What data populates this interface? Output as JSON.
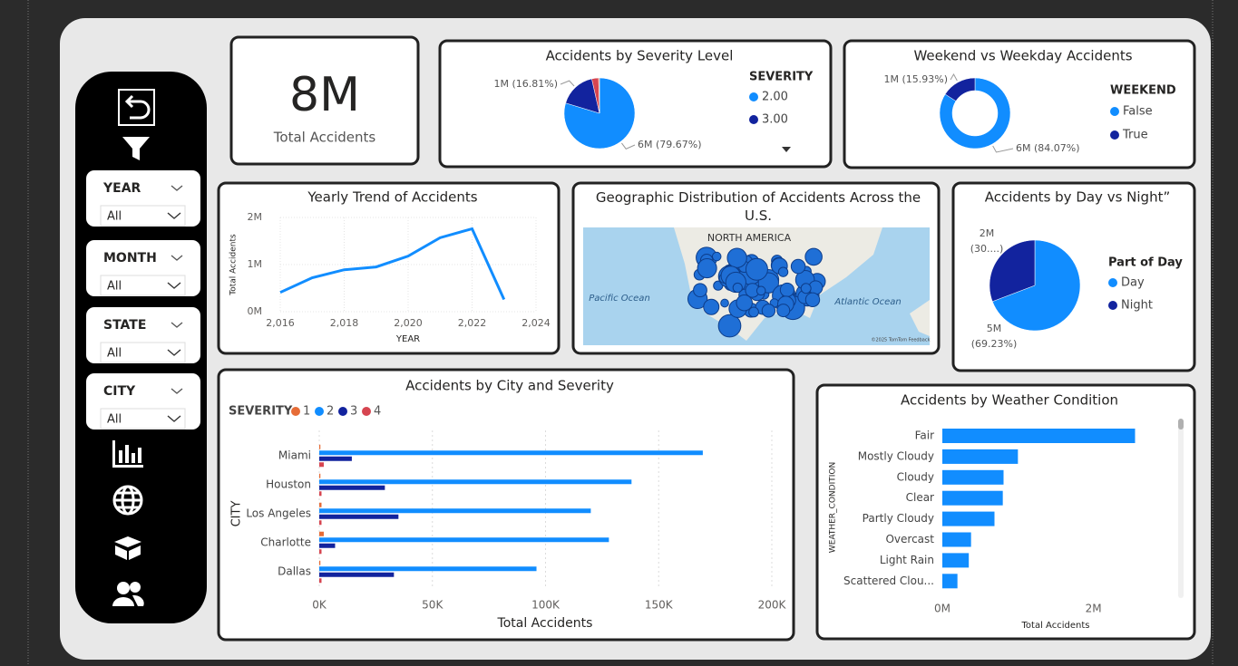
{
  "kpi": {
    "value": "8M",
    "label": "Total Accidents"
  },
  "filters": [
    {
      "label": "YEAR",
      "value": "All"
    },
    {
      "label": "MONTH",
      "value": "All"
    },
    {
      "label": "STATE",
      "value": "All"
    },
    {
      "label": "CITY",
      "value": "All"
    }
  ],
  "chart_data": [
    {
      "type": "pie",
      "title": "Accidents by Severity Level",
      "legend_title": "SEVERITY",
      "categories": [
        "2.00",
        "3.00",
        null,
        null
      ],
      "values": [
        79.67,
        16.81,
        3.12,
        0.4
      ],
      "value_labels": [
        "6M (79.67%)",
        "1M (16.81%)",
        null,
        null
      ],
      "colors": [
        "#118dff",
        "#12239e",
        "#d64550",
        "#e66c37"
      ]
    },
    {
      "type": "donut",
      "title": "Weekend vs Weekday Accidents",
      "legend_title": "WEEKEND",
      "categories": [
        "False",
        "True"
      ],
      "values": [
        84.07,
        15.93
      ],
      "value_labels": [
        "6M (84.07%)",
        "1M (15.93%)"
      ],
      "colors": [
        "#118dff",
        "#12239e"
      ]
    },
    {
      "type": "line",
      "title": "Yearly Trend of Accidents",
      "x_label": "YEAR",
      "y_label": "Total Accidents",
      "x": [
        2016,
        2017,
        2018,
        2019,
        2020,
        2021,
        2022,
        2023
      ],
      "values": [
        410000,
        720000,
        890000,
        950000,
        1180000,
        1570000,
        1760000,
        260000
      ],
      "color": "#118dff",
      "xlim": [
        2016,
        2024
      ],
      "xticks": [
        {
          "value": 2016,
          "label": "2,016"
        },
        {
          "value": 2018,
          "label": "2,018"
        },
        {
          "value": 2020,
          "label": "2,020"
        },
        {
          "value": 2022,
          "label": "2,022"
        },
        {
          "value": 2024,
          "label": "2,024"
        }
      ],
      "ylim": [
        0,
        2000000
      ],
      "yticks": [
        {
          "value": 0,
          "label": "0M"
        },
        {
          "value": 1000000,
          "label": "1M"
        },
        {
          "value": 2000000,
          "label": "2M"
        }
      ],
      "grid": true
    },
    {
      "type": "map",
      "title": "Geographic Distribution of Accidents Across the U.S.",
      "labels": [
        "NORTH AMERICA",
        "Pacific Ocean",
        "Atlantic Ocean",
        "©2025 TomTom Feedback"
      ]
    },
    {
      "type": "pie",
      "title": "Accidents by Day vs Night”",
      "legend_title": "Part of Day",
      "categories": [
        "Day",
        "Night"
      ],
      "values": [
        69.23,
        30.77
      ],
      "value_labels": [
        "5M (69.23%)",
        "2M (30....)"
      ],
      "colors": [
        "#118dff",
        "#12239e"
      ]
    },
    {
      "type": "hbar",
      "title": "Accidents by City and Severity",
      "legend_title": "SEVERITY",
      "x_label": "Total Accidents",
      "y_label": "CITY",
      "categories": [
        "Miami",
        "Houston",
        "Los Angeles",
        "Charlotte",
        "Dallas"
      ],
      "series": [
        {
          "name": "1",
          "color": "#e66c37",
          "values": [
            500,
            500,
            1000,
            2000,
            500
          ]
        },
        {
          "name": "2",
          "color": "#118dff",
          "values": [
            169500,
            138000,
            120000,
            128000,
            96000
          ]
        },
        {
          "name": "3",
          "color": "#12239e",
          "values": [
            14400,
            29000,
            35000,
            7000,
            33000
          ]
        },
        {
          "name": "4",
          "color": "#d64550",
          "values": [
            2000,
            1000,
            1000,
            1000,
            1000
          ]
        }
      ],
      "xlim": [
        0,
        200000
      ],
      "xticks": [
        {
          "value": 0,
          "label": "0K"
        },
        {
          "value": 50000,
          "label": "50K"
        },
        {
          "value": 100000,
          "label": "100K"
        },
        {
          "value": 150000,
          "label": "150K"
        },
        {
          "value": 200000,
          "label": "200K"
        }
      ],
      "grid": true
    },
    {
      "type": "hbar",
      "title": "Accidents by Weather Condition",
      "x_label": "Total Accidents",
      "y_label": "WEATHER_CONDITION",
      "categories": [
        "Fair",
        "Mostly Cloudy",
        "Cloudy",
        "Clear",
        "Partly Cloudy",
        "Overcast",
        "Light Rain",
        "Scattered Clou..."
      ],
      "series": [
        {
          "color": "#118dff",
          "values": [
            2550000,
            1000000,
            810000,
            800000,
            690000,
            380000,
            350000,
            200000
          ]
        }
      ],
      "xlim": [
        0,
        3000000
      ],
      "xticks": [
        {
          "value": 0,
          "label": "0M"
        },
        {
          "value": 2000000,
          "label": "2M"
        }
      ],
      "grid": false
    }
  ]
}
